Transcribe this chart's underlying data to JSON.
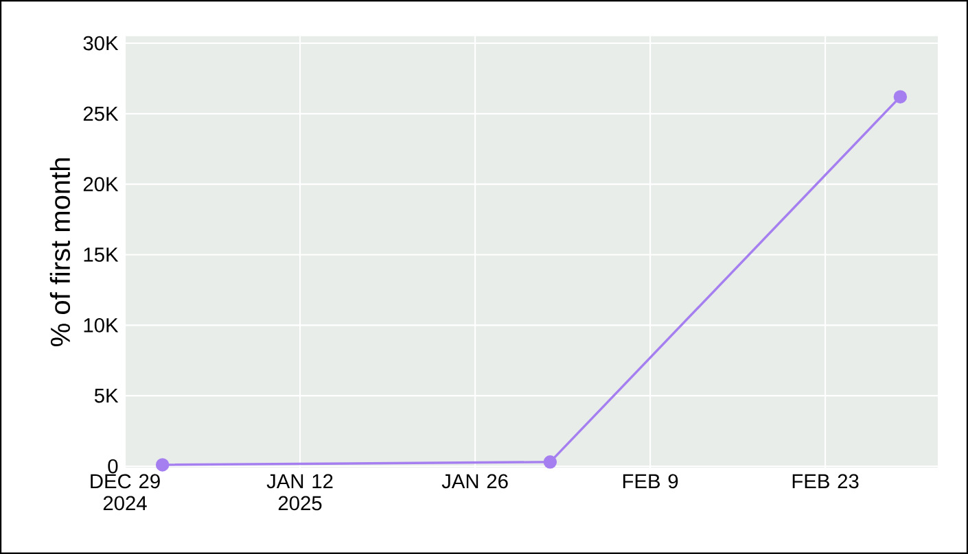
{
  "chart_data": {
    "type": "line",
    "ylabel": "% of first month",
    "x": [
      "2025-01-01",
      "2025-02-01",
      "2025-03-01"
    ],
    "series": [
      {
        "color": "#a57ff0",
        "values": [
          100,
          300,
          26200
        ]
      }
    ],
    "xlim": [
      "2024-12-29",
      "2025-03-04"
    ],
    "xticks": [
      {
        "value": "2024-12-29",
        "label": "DEC 29 2024"
      },
      {
        "value": "2025-01-12",
        "label": "JAN 12 2025"
      },
      {
        "value": "2025-01-26",
        "label": "JAN 26"
      },
      {
        "value": "2025-02-09",
        "label": "FEB 9"
      },
      {
        "value": "2025-02-23",
        "label": "FEB 23"
      }
    ],
    "ylim": [
      -100,
      30500
    ],
    "yticks": [
      0,
      {
        "value": 5000,
        "label": "5K"
      },
      {
        "value": 10000,
        "label": "10K"
      },
      {
        "value": 15000,
        "label": "15K"
      },
      {
        "value": 20000,
        "label": "20K"
      },
      {
        "value": 25000,
        "label": "25K"
      },
      {
        "value": 30000,
        "label": "30K"
      }
    ],
    "grid": true,
    "marker": "circle",
    "line_style": "solid"
  }
}
